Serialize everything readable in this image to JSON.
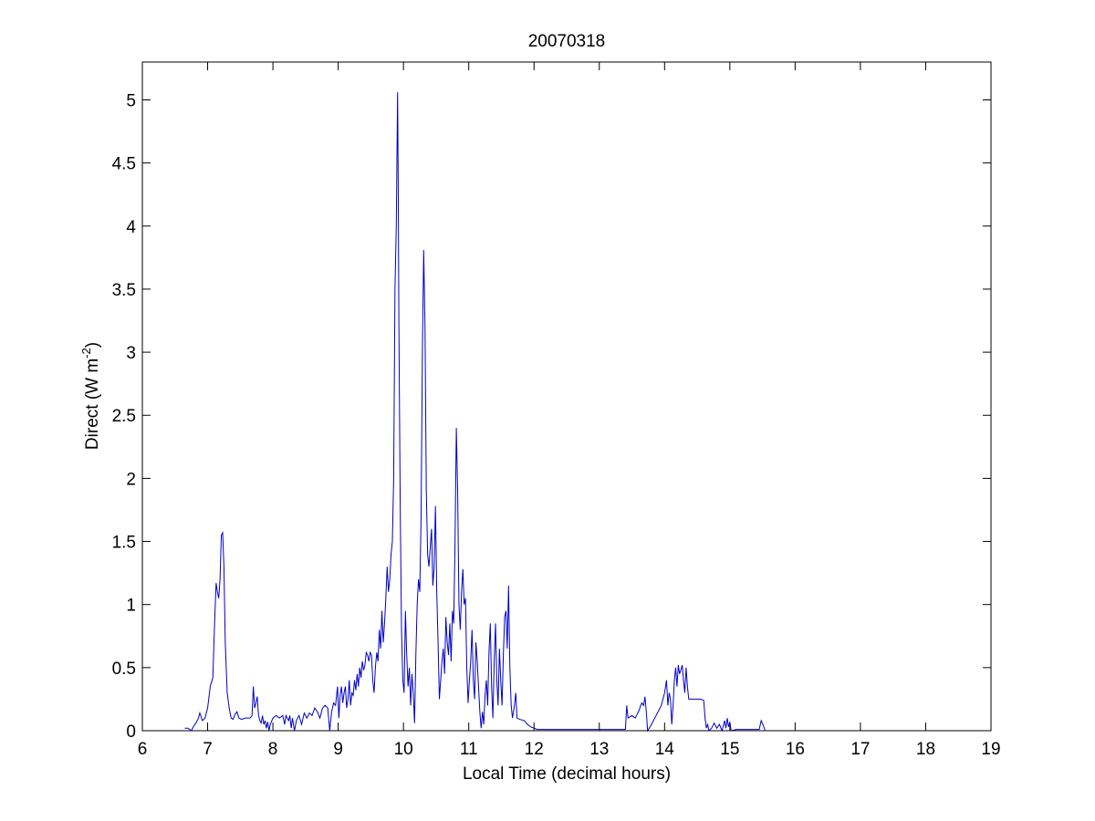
{
  "chart_data": {
    "type": "line",
    "title": "20070318",
    "xlabel": "Local Time (decimal hours)",
    "ylabel": "Direct (W m",
    "ylabel_superscript": "-2",
    "ylabel_suffix": ")",
    "xlim": [
      6,
      19
    ],
    "ylim": [
      0,
      5.3
    ],
    "xticks": [
      6,
      7,
      8,
      9,
      10,
      11,
      12,
      13,
      14,
      15,
      16,
      17,
      18,
      19
    ],
    "yticks": [
      0,
      0.5,
      1,
      1.5,
      2,
      2.5,
      3,
      3.5,
      4,
      4.5,
      5
    ],
    "grid": false,
    "line_color": "#0000c8",
    "series": [
      {
        "points": [
          [
            6.65,
            0.02
          ],
          [
            6.7,
            0.02
          ],
          [
            6.75,
            0.0
          ],
          [
            6.78,
            0.03
          ],
          [
            6.82,
            0.06
          ],
          [
            6.86,
            0.1
          ],
          [
            6.88,
            0.14
          ],
          [
            6.92,
            0.08
          ],
          [
            6.96,
            0.1
          ],
          [
            7.0,
            0.18
          ],
          [
            7.04,
            0.35
          ],
          [
            7.08,
            0.42
          ],
          [
            7.11,
            0.9
          ],
          [
            7.13,
            1.17
          ],
          [
            7.15,
            1.1
          ],
          [
            7.17,
            1.05
          ],
          [
            7.19,
            1.2
          ],
          [
            7.21,
            1.55
          ],
          [
            7.23,
            1.57
          ],
          [
            7.25,
            1.3
          ],
          [
            7.27,
            0.7
          ],
          [
            7.3,
            0.3
          ],
          [
            7.33,
            0.18
          ],
          [
            7.36,
            0.1
          ],
          [
            7.39,
            0.09
          ],
          [
            7.42,
            0.13
          ],
          [
            7.45,
            0.15
          ],
          [
            7.48,
            0.1
          ],
          [
            7.52,
            0.09
          ],
          [
            7.58,
            0.1
          ],
          [
            7.65,
            0.1
          ],
          [
            7.68,
            0.12
          ],
          [
            7.7,
            0.35
          ],
          [
            7.72,
            0.18
          ],
          [
            7.74,
            0.22
          ],
          [
            7.76,
            0.27
          ],
          [
            7.78,
            0.12
          ],
          [
            7.8,
            0.08
          ],
          [
            7.82,
            0.06
          ],
          [
            7.84,
            0.12
          ],
          [
            7.86,
            0.05
          ],
          [
            7.88,
            0.08
          ],
          [
            7.9,
            0.02
          ],
          [
            7.92,
            0.07
          ],
          [
            7.94,
            0.0
          ],
          [
            7.96,
            0.05
          ],
          [
            8.0,
            0.1
          ],
          [
            8.05,
            0.12
          ],
          [
            8.1,
            0.1
          ],
          [
            8.15,
            0.12
          ],
          [
            8.18,
            0.05
          ],
          [
            8.2,
            0.12
          ],
          [
            8.24,
            0.08
          ],
          [
            8.26,
            0.12
          ],
          [
            8.28,
            0.02
          ],
          [
            8.3,
            0.1
          ],
          [
            8.33,
            0.0
          ],
          [
            8.36,
            0.08
          ],
          [
            8.4,
            0.12
          ],
          [
            8.44,
            0.05
          ],
          [
            8.48,
            0.14
          ],
          [
            8.52,
            0.1
          ],
          [
            8.56,
            0.14
          ],
          [
            8.6,
            0.12
          ],
          [
            8.64,
            0.18
          ],
          [
            8.68,
            0.15
          ],
          [
            8.72,
            0.1
          ],
          [
            8.76,
            0.18
          ],
          [
            8.8,
            0.2
          ],
          [
            8.84,
            0.18
          ],
          [
            8.87,
            0.0
          ],
          [
            8.9,
            0.15
          ],
          [
            8.93,
            0.22
          ],
          [
            8.96,
            0.2
          ],
          [
            8.99,
            0.35
          ],
          [
            9.01,
            0.1
          ],
          [
            9.03,
            0.28
          ],
          [
            9.05,
            0.35
          ],
          [
            9.07,
            0.22
          ],
          [
            9.09,
            0.3
          ],
          [
            9.11,
            0.35
          ],
          [
            9.13,
            0.18
          ],
          [
            9.15,
            0.25
          ],
          [
            9.17,
            0.4
          ],
          [
            9.19,
            0.2
          ],
          [
            9.21,
            0.3
          ],
          [
            9.23,
            0.28
          ],
          [
            9.25,
            0.4
          ],
          [
            9.27,
            0.32
          ],
          [
            9.29,
            0.45
          ],
          [
            9.31,
            0.35
          ],
          [
            9.33,
            0.5
          ],
          [
            9.35,
            0.42
          ],
          [
            9.37,
            0.55
          ],
          [
            9.39,
            0.48
          ],
          [
            9.41,
            0.52
          ],
          [
            9.43,
            0.62
          ],
          [
            9.45,
            0.6
          ],
          [
            9.47,
            0.55
          ],
          [
            9.49,
            0.62
          ],
          [
            9.51,
            0.6
          ],
          [
            9.53,
            0.4
          ],
          [
            9.55,
            0.3
          ],
          [
            9.57,
            0.5
          ],
          [
            9.59,
            0.62
          ],
          [
            9.61,
            0.55
          ],
          [
            9.63,
            0.8
          ],
          [
            9.65,
            0.65
          ],
          [
            9.67,
            0.95
          ],
          [
            9.69,
            0.7
          ],
          [
            9.71,
            0.85
          ],
          [
            9.73,
            1.05
          ],
          [
            9.75,
            1.3
          ],
          [
            9.77,
            1.1
          ],
          [
            9.79,
            1.2
          ],
          [
            9.81,
            1.4
          ],
          [
            9.83,
            1.5
          ],
          [
            9.85,
            2.0
          ],
          [
            9.87,
            3.5
          ],
          [
            9.89,
            4.0
          ],
          [
            9.91,
            5.06
          ],
          [
            9.92,
            4.3
          ],
          [
            9.93,
            3.2
          ],
          [
            9.95,
            1.8
          ],
          [
            9.97,
            0.8
          ],
          [
            9.99,
            0.4
          ],
          [
            10.01,
            0.3
          ],
          [
            10.03,
            0.95
          ],
          [
            10.05,
            0.6
          ],
          [
            10.07,
            0.35
          ],
          [
            10.09,
            0.5
          ],
          [
            10.11,
            0.2
          ],
          [
            10.13,
            0.45
          ],
          [
            10.15,
            0.3
          ],
          [
            10.17,
            0.06
          ],
          [
            10.19,
            0.6
          ],
          [
            10.21,
            1.0
          ],
          [
            10.23,
            1.2
          ],
          [
            10.25,
            1.1
          ],
          [
            10.27,
            1.7
          ],
          [
            10.29,
            3.0
          ],
          [
            10.31,
            3.81
          ],
          [
            10.33,
            3.2
          ],
          [
            10.35,
            1.9
          ],
          [
            10.37,
            1.4
          ],
          [
            10.39,
            1.3
          ],
          [
            10.41,
            1.45
          ],
          [
            10.43,
            1.6
          ],
          [
            10.45,
            1.15
          ],
          [
            10.47,
            1.3
          ],
          [
            10.49,
            1.78
          ],
          [
            10.51,
            1.1
          ],
          [
            10.53,
            0.7
          ],
          [
            10.55,
            0.25
          ],
          [
            10.57,
            0.4
          ],
          [
            10.59,
            0.55
          ],
          [
            10.61,
            0.65
          ],
          [
            10.63,
            0.45
          ],
          [
            10.65,
            0.9
          ],
          [
            10.67,
            0.7
          ],
          [
            10.69,
            0.6
          ],
          [
            10.71,
            0.85
          ],
          [
            10.73,
            0.55
          ],
          [
            10.75,
            0.95
          ],
          [
            10.77,
            0.85
          ],
          [
            10.79,
            1.5
          ],
          [
            10.81,
            2.4
          ],
          [
            10.83,
            1.9
          ],
          [
            10.85,
            1.0
          ],
          [
            10.87,
            0.8
          ],
          [
            10.89,
            1.1
          ],
          [
            10.91,
            1.28
          ],
          [
            10.93,
            1.0
          ],
          [
            10.95,
            1.05
          ],
          [
            10.97,
            0.5
          ],
          [
            10.99,
            0.22
          ],
          [
            11.01,
            0.4
          ],
          [
            11.03,
            0.55
          ],
          [
            11.05,
            0.8
          ],
          [
            11.07,
            0.4
          ],
          [
            11.09,
            0.25
          ],
          [
            11.11,
            0.7
          ],
          [
            11.13,
            0.55
          ],
          [
            11.15,
            0.35
          ],
          [
            11.17,
            0.15
          ],
          [
            11.19,
            0.02
          ],
          [
            11.21,
            0.15
          ],
          [
            11.23,
            0.05
          ],
          [
            11.25,
            0.28
          ],
          [
            11.27,
            0.4
          ],
          [
            11.29,
            0.2
          ],
          [
            11.31,
            0.62
          ],
          [
            11.33,
            0.85
          ],
          [
            11.35,
            0.35
          ],
          [
            11.37,
            0.1
          ],
          [
            11.39,
            0.55
          ],
          [
            11.41,
            0.85
          ],
          [
            11.43,
            0.4
          ],
          [
            11.45,
            0.2
          ],
          [
            11.47,
            0.65
          ],
          [
            11.49,
            0.4
          ],
          [
            11.51,
            0.2
          ],
          [
            11.53,
            0.6
          ],
          [
            11.55,
            0.9
          ],
          [
            11.57,
            0.95
          ],
          [
            11.59,
            0.65
          ],
          [
            11.61,
            1.15
          ],
          [
            11.63,
            0.5
          ],
          [
            11.65,
            0.2
          ],
          [
            11.67,
            0.1
          ],
          [
            11.7,
            0.2
          ],
          [
            11.72,
            0.3
          ],
          [
            11.74,
            0.1
          ],
          [
            11.78,
            0.09
          ],
          [
            11.85,
            0.08
          ],
          [
            11.9,
            0.05
          ],
          [
            11.95,
            0.03
          ],
          [
            12.0,
            0.02
          ],
          [
            12.05,
            0.01
          ],
          [
            12.2,
            0.01
          ],
          [
            12.5,
            0.01
          ],
          [
            13.0,
            0.01
          ],
          [
            13.4,
            0.01
          ],
          [
            13.42,
            0.2
          ],
          [
            13.44,
            0.1
          ],
          [
            13.5,
            0.12
          ],
          [
            13.55,
            0.1
          ],
          [
            13.6,
            0.15
          ],
          [
            13.65,
            0.22
          ],
          [
            13.68,
            0.2
          ],
          [
            13.7,
            0.27
          ],
          [
            13.72,
            0.15
          ],
          [
            13.74,
            0.0
          ],
          [
            13.8,
            0.05
          ],
          [
            13.85,
            0.1
          ],
          [
            13.9,
            0.15
          ],
          [
            13.95,
            0.2
          ],
          [
            14.0,
            0.3
          ],
          [
            14.03,
            0.4
          ],
          [
            14.05,
            0.2
          ],
          [
            14.07,
            0.3
          ],
          [
            14.09,
            0.25
          ],
          [
            14.11,
            0.05
          ],
          [
            14.13,
            0.2
          ],
          [
            14.15,
            0.4
          ],
          [
            14.17,
            0.5
          ],
          [
            14.19,
            0.35
          ],
          [
            14.21,
            0.52
          ],
          [
            14.23,
            0.45
          ],
          [
            14.25,
            0.48
          ],
          [
            14.27,
            0.52
          ],
          [
            14.29,
            0.4
          ],
          [
            14.31,
            0.3
          ],
          [
            14.33,
            0.5
          ],
          [
            14.35,
            0.35
          ],
          [
            14.37,
            0.25
          ],
          [
            14.45,
            0.25
          ],
          [
            14.55,
            0.25
          ],
          [
            14.6,
            0.24
          ],
          [
            14.62,
            0.1
          ],
          [
            14.64,
            0.02
          ],
          [
            14.66,
            0.05
          ],
          [
            14.68,
            0.0
          ],
          [
            14.72,
            0.02
          ],
          [
            14.76,
            0.06
          ],
          [
            14.8,
            0.02
          ],
          [
            14.84,
            0.05
          ],
          [
            14.88,
            0.0
          ],
          [
            14.92,
            0.08
          ],
          [
            14.94,
            0.02
          ],
          [
            14.96,
            0.1
          ],
          [
            14.98,
            0.03
          ],
          [
            15.0,
            0.07
          ],
          [
            15.02,
            0.0
          ],
          [
            15.1,
            0.01
          ],
          [
            15.3,
            0.01
          ],
          [
            15.45,
            0.01
          ],
          [
            15.48,
            0.08
          ],
          [
            15.52,
            0.03
          ],
          [
            15.54,
            0.0
          ]
        ]
      }
    ]
  }
}
